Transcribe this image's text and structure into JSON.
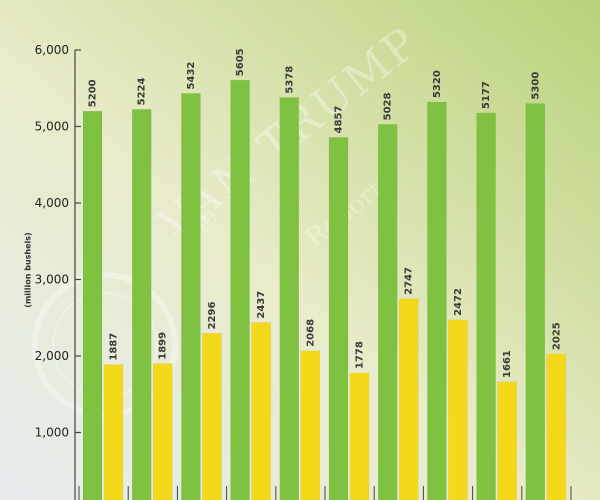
{
  "chart_data": {
    "type": "bar",
    "title": "",
    "ylabel": "(million bushels)",
    "xlabel": "",
    "ylim": [
      0,
      6000
    ],
    "yticks": [
      "1,000",
      "2,000",
      "3,000",
      "4,000",
      "5,000",
      "6,000"
    ],
    "ytick_values": [
      1000,
      2000,
      3000,
      4000,
      5000,
      6000
    ],
    "series": [
      {
        "color": "#7fc241",
        "values": [
          5200,
          5224,
          5432,
          5605,
          5378,
          4857,
          5028,
          5320,
          5177,
          5300
        ]
      },
      {
        "color": "#f4d81a",
        "values": [
          1887,
          1899,
          2296,
          2437,
          2068,
          1778,
          2747,
          2472,
          1661,
          2025
        ]
      }
    ],
    "categories": [
      "",
      "",
      "",
      "",
      "",
      "",
      "",
      "",
      "",
      ""
    ],
    "grid": false,
    "legend": "none"
  },
  "watermark": {
    "the": "The",
    "name": "VAN TRUMP",
    "sub": "Report"
  }
}
